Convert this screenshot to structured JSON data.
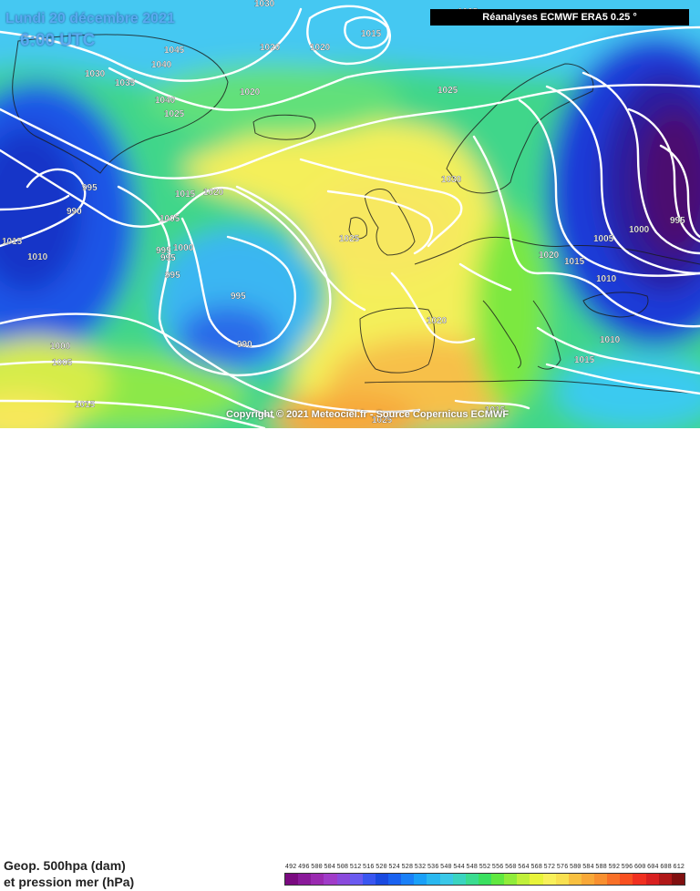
{
  "map": {
    "date": "Lundi 20 décembre 2021",
    "time": "6:00 UTC",
    "source": "Réanalyses ECMWF ERA5 0.25 °",
    "copyright": "Copyright © 2021 Meteociel.fr - Source Copernicus ECMWF",
    "isobar_labels": [
      {
        "text": "1030"
      },
      {
        "text": "1045"
      },
      {
        "text": "1040"
      },
      {
        "text": "1035"
      },
      {
        "text": "1030"
      },
      {
        "text": "1040"
      },
      {
        "text": "1025"
      },
      {
        "text": "1020"
      },
      {
        "text": "1020"
      },
      {
        "text": "1020"
      },
      {
        "text": "1015"
      },
      {
        "text": "1025"
      },
      {
        "text": "995"
      },
      {
        "text": "990"
      },
      {
        "text": "1015"
      },
      {
        "text": "1010"
      },
      {
        "text": "1005"
      },
      {
        "text": "1000"
      },
      {
        "text": "995"
      },
      {
        "text": "995"
      },
      {
        "text": "995"
      },
      {
        "text": "995"
      },
      {
        "text": "1015"
      },
      {
        "text": "1020"
      },
      {
        "text": "1025"
      },
      {
        "text": "1030"
      },
      {
        "text": "990"
      },
      {
        "text": "1000"
      },
      {
        "text": "1005"
      },
      {
        "text": "1015"
      },
      {
        "text": "1020"
      },
      {
        "text": "1020"
      },
      {
        "text": "1015"
      },
      {
        "text": "1010"
      },
      {
        "text": "1005"
      },
      {
        "text": "1000"
      },
      {
        "text": "995"
      },
      {
        "text": "1010"
      },
      {
        "text": "1015"
      },
      {
        "text": "1015"
      },
      {
        "text": "1025"
      },
      {
        "text": "1025"
      }
    ],
    "colors": {
      "low": "#2a1a5e",
      "blue": "#1a3bd0",
      "cyan": "#3fc2f0",
      "green": "#33d870",
      "yellow": "#f7f35a",
      "orange": "#f7b040",
      "purple": "#4b0f5a",
      "isobar": "#ffffff"
    }
  },
  "legend": {
    "line1": "Geop. 500hpa (dam)",
    "line2": "et pression mer (hPa)",
    "scale_values": [
      "492",
      "496",
      "500",
      "504",
      "508",
      "512",
      "516",
      "520",
      "524",
      "528",
      "532",
      "536",
      "540",
      "544",
      "548",
      "552",
      "556",
      "560",
      "564",
      "568",
      "572",
      "576",
      "580",
      "584",
      "588",
      "592",
      "596",
      "600",
      "604",
      "608",
      "612"
    ],
    "scale_colors": [
      "#7a0a80",
      "#8a1a9a",
      "#9a2ab0",
      "#a03cc8",
      "#8a4adc",
      "#6a5af0",
      "#3a56f0",
      "#1a4ae0",
      "#1a62f0",
      "#1a80f8",
      "#1aa0f8",
      "#2ab8f0",
      "#3ac8e8",
      "#3ad4c0",
      "#3adc90",
      "#3ae060",
      "#60e840",
      "#90ec3a",
      "#c0f03a",
      "#e8f43a",
      "#f8f05a",
      "#f8e050",
      "#f8c040",
      "#f8a838",
      "#f89030",
      "#f87028",
      "#f85020",
      "#f03020",
      "#d82020",
      "#b01818",
      "#801010"
    ]
  }
}
